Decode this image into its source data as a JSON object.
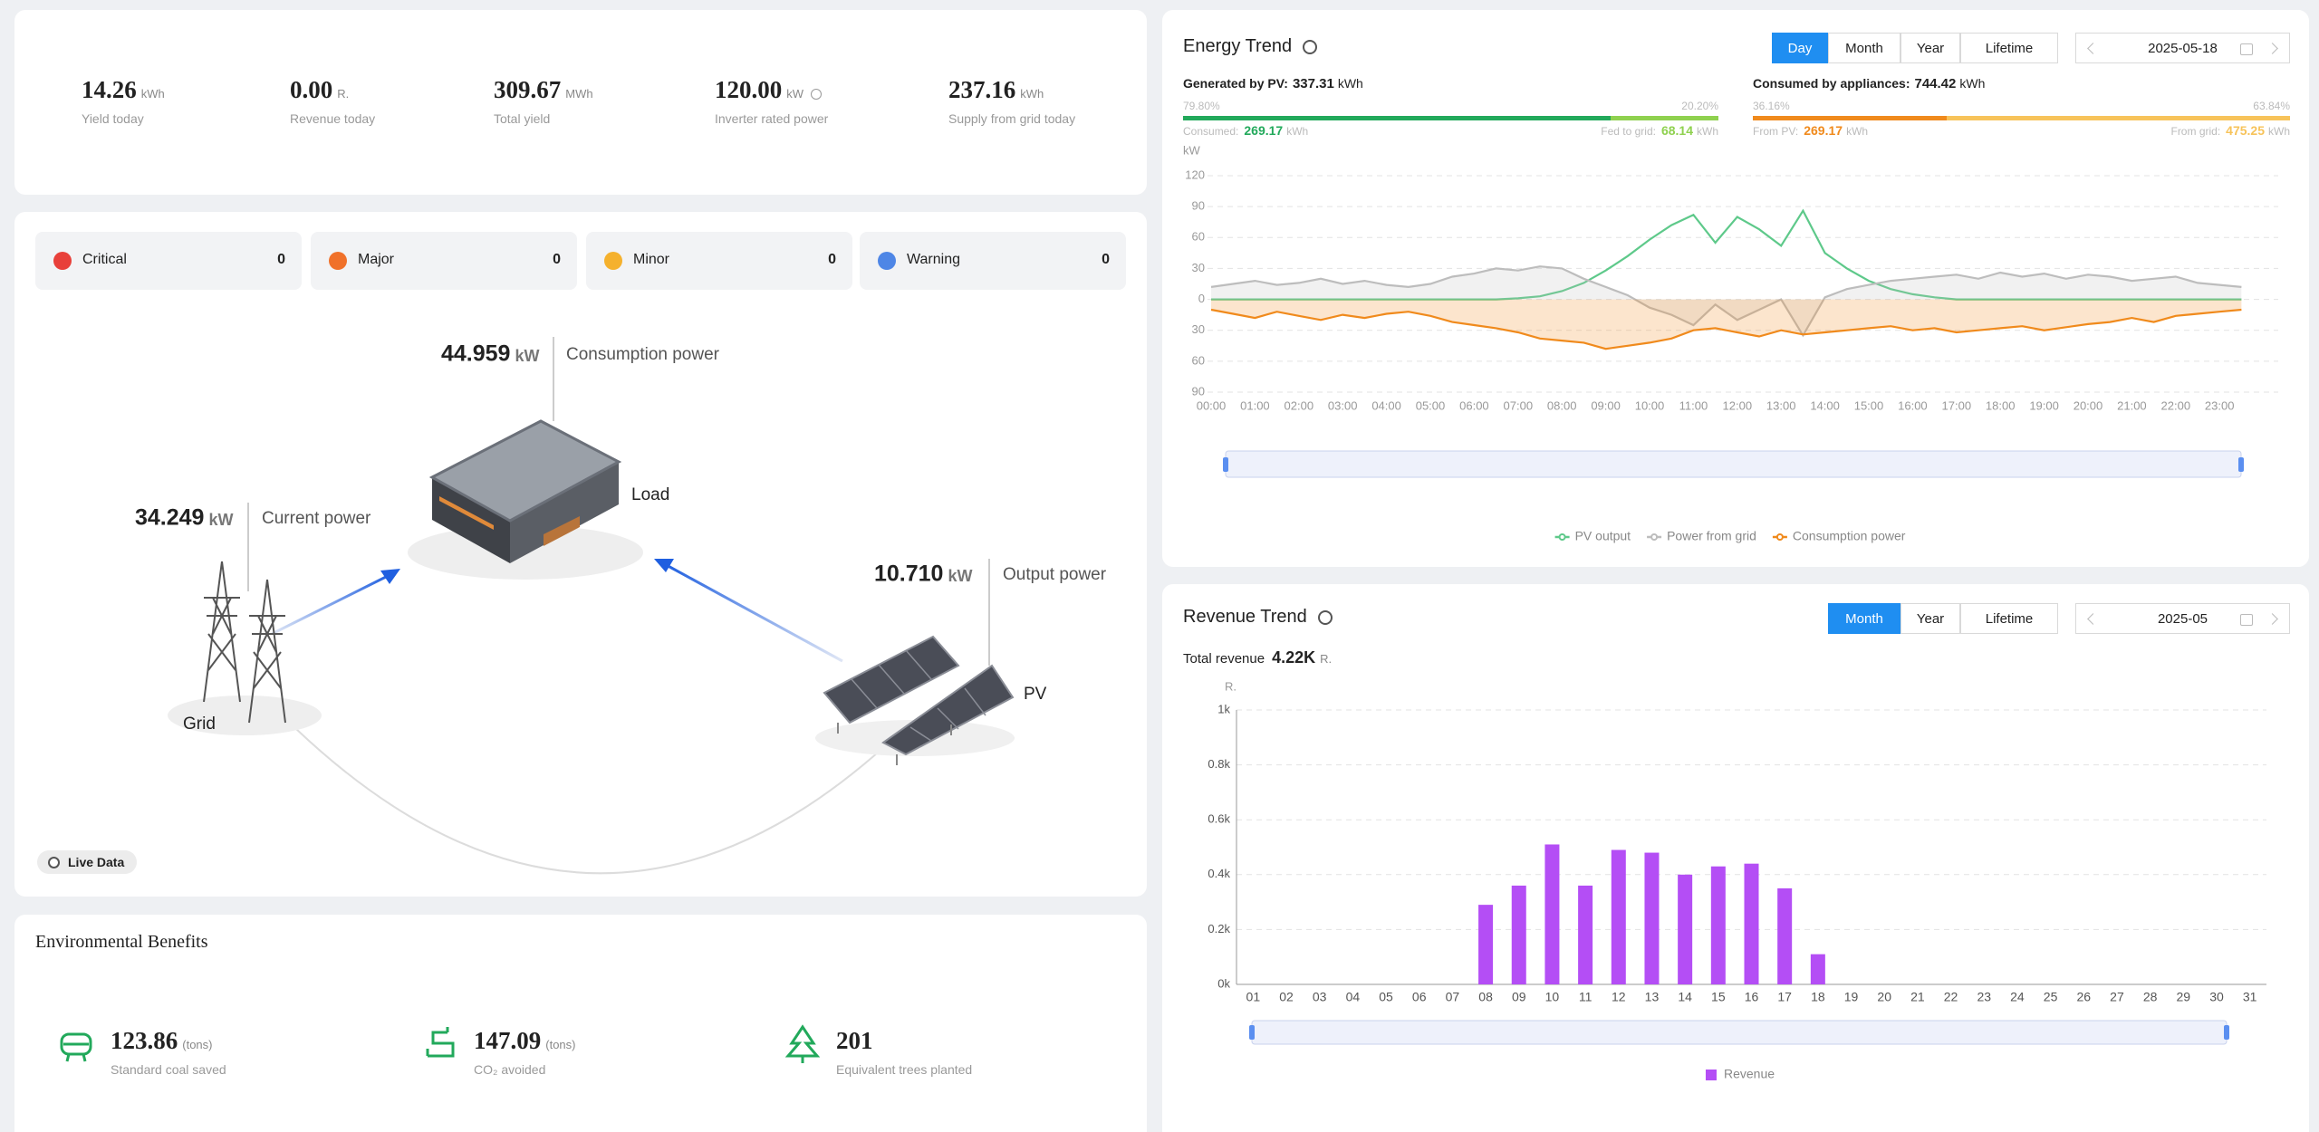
{
  "kpis": [
    {
      "value": "14.26",
      "unit": "kWh",
      "label": "Yield today"
    },
    {
      "value": "0.00",
      "unit": "R.",
      "label": "Revenue today"
    },
    {
      "value": "309.67",
      "unit": "MWh",
      "label": "Total yield"
    },
    {
      "value": "120.00",
      "unit": "kW",
      "label": "Inverter rated power"
    },
    {
      "value": "237.16",
      "unit": "kWh",
      "label": "Supply from grid today"
    }
  ],
  "alarms": [
    {
      "label": "Critical",
      "count": 0,
      "color": "#e8403a"
    },
    {
      "label": "Major",
      "count": 0,
      "color": "#f0712a"
    },
    {
      "label": "Minor",
      "count": 0,
      "color": "#f5b12d"
    },
    {
      "label": "Warning",
      "count": 0,
      "color": "#4e86e6"
    }
  ],
  "flow": {
    "consumption": {
      "value": "44.959",
      "unit": "kW",
      "label": "Consumption power"
    },
    "load_label": "Load",
    "grid": {
      "value": "34.249",
      "unit": "kW",
      "label": "Current power"
    },
    "grid_label": "Grid",
    "pv": {
      "value": "10.710",
      "unit": "kW",
      "label": "Output power"
    },
    "pv_label": "PV",
    "live": "Live Data"
  },
  "environment": {
    "title": "Environmental Benefits",
    "items": [
      {
        "value": "123.86",
        "unit": "(tons)",
        "label": "Standard coal saved"
      },
      {
        "value": "147.09",
        "unit": "(tons)",
        "label": "CO₂ avoided"
      },
      {
        "value": "201",
        "label": "Equivalent trees planted"
      }
    ]
  },
  "energy_controls": {
    "tabs": [
      "Day",
      "Month",
      "Year",
      "Lifetime"
    ],
    "active": 0,
    "date": "2025-05-18"
  },
  "energy_summary": {
    "generated": {
      "label": "Generated by PV:",
      "value": "337.31",
      "unit": "kWh",
      "split": [
        {
          "value": 79.8,
          "label": "79.80%",
          "color": "#22a95b"
        },
        {
          "value": 20.2,
          "label": "20.20%",
          "color": "#8fd14f"
        }
      ],
      "parts": [
        {
          "label": "Consumed:",
          "value": "269.17",
          "unit": "kWh"
        },
        {
          "label": "Fed to grid:",
          "value": "68.14",
          "unit": "kWh"
        }
      ]
    },
    "consumed": {
      "label": "Consumed by appliances:",
      "value": "744.42",
      "unit": "kWh",
      "split": [
        {
          "value": 36.16,
          "label": "36.16%",
          "color": "#f08a1c"
        },
        {
          "value": 63.84,
          "label": "63.84%",
          "color": "#f7c35a"
        }
      ],
      "parts": [
        {
          "label": "From PV:",
          "value": "269.17",
          "unit": "kWh"
        },
        {
          "label": "From grid:",
          "value": "475.25",
          "unit": "kWh"
        }
      ]
    }
  },
  "revenue_controls": {
    "tabs": [
      "Month",
      "Year",
      "Lifetime"
    ],
    "active": 0,
    "date": "2025-05"
  },
  "revenue_total": {
    "label": "Total revenue",
    "value": "4.22K",
    "unit": "R."
  },
  "chart_data": [
    {
      "type": "line",
      "title": "Energy Trend",
      "y_label": "kW",
      "categories": [
        "00:00",
        null,
        "01:00",
        null,
        "02:00",
        null,
        "03:00",
        null,
        "04:00",
        null,
        "05:00",
        null,
        "06:00",
        null,
        "07:00",
        null,
        "08:00",
        null,
        "09:00",
        null,
        "10:00",
        null,
        "11:00",
        null,
        "12:00",
        null,
        "13:00",
        null,
        "14:00",
        null,
        "15:00",
        null,
        "16:00",
        null,
        "17:00",
        null,
        "18:00",
        null,
        "19:00",
        null,
        "20:00",
        null,
        "21:00",
        null,
        "22:00",
        null,
        "23:00",
        null
      ],
      "series": [
        {
          "name": "PV output",
          "color": "#5ec98a",
          "area": false,
          "values": [
            0,
            0,
            0,
            0,
            0,
            0,
            0,
            0,
            0,
            0,
            0,
            0,
            0,
            0,
            1,
            3,
            8,
            16,
            28,
            42,
            58,
            72,
            82,
            55,
            80,
            68,
            52,
            86,
            45,
            30,
            18,
            10,
            5,
            2,
            0,
            0,
            0,
            0,
            0,
            0,
            0,
            0,
            0,
            0,
            0,
            0,
            0,
            0
          ]
        },
        {
          "name": "Power from grid",
          "color": "#bdbdbd",
          "area": true,
          "values": [
            12,
            15,
            18,
            14,
            16,
            20,
            15,
            18,
            14,
            12,
            15,
            22,
            25,
            30,
            28,
            32,
            30,
            20,
            12,
            4,
            -8,
            -15,
            -25,
            -5,
            -20,
            -10,
            0,
            -35,
            2,
            10,
            14,
            18,
            20,
            22,
            24,
            20,
            26,
            22,
            25,
            20,
            24,
            22,
            18,
            20,
            22,
            16,
            14,
            12
          ]
        },
        {
          "name": "Consumption power",
          "color": "#f08a1c",
          "area": true,
          "values": [
            -10,
            -14,
            -18,
            -12,
            -16,
            -20,
            -15,
            -18,
            -14,
            -12,
            -16,
            -22,
            -25,
            -28,
            -32,
            -38,
            -40,
            -42,
            -48,
            -45,
            -42,
            -38,
            -30,
            -28,
            -32,
            -36,
            -30,
            -34,
            -32,
            -30,
            -28,
            -26,
            -30,
            -28,
            -32,
            -30,
            -28,
            -26,
            -30,
            -27,
            -24,
            -22,
            -18,
            -22,
            -16,
            -14,
            -12,
            -10
          ]
        }
      ],
      "ylim": [
        -90,
        120
      ],
      "yticks": [
        {
          "value": -90,
          "label": "90"
        },
        {
          "value": -60,
          "label": "60"
        },
        {
          "value": -30,
          "label": "30"
        },
        0,
        30,
        60,
        90,
        120
      ],
      "grid": true
    },
    {
      "type": "bar",
      "title": "Revenue Trend",
      "y_label": "R.",
      "categories": [
        "01",
        "02",
        "03",
        "04",
        "05",
        "06",
        "07",
        "08",
        "09",
        "10",
        "11",
        "12",
        "13",
        "14",
        "15",
        "16",
        "17",
        "18",
        "19",
        "20",
        "21",
        "22",
        "23",
        "24",
        "25",
        "26",
        "27",
        "28",
        "29",
        "30",
        "31"
      ],
      "series": [
        {
          "name": "Revenue",
          "color": "#b44ef5",
          "values": [
            null,
            null,
            null,
            null,
            null,
            null,
            null,
            290,
            360,
            510,
            360,
            490,
            480,
            400,
            430,
            440,
            350,
            110,
            null,
            null,
            null,
            null,
            null,
            null,
            null,
            null,
            null,
            null,
            null,
            null,
            null
          ]
        }
      ],
      "ylim": [
        0,
        1000
      ],
      "yticks": [
        {
          "value": 0,
          "label": "0k"
        },
        {
          "value": 200,
          "label": "0.2k"
        },
        {
          "value": 400,
          "label": "0.4k"
        },
        {
          "value": 600,
          "label": "0.6k"
        },
        {
          "value": 800,
          "label": "0.8k"
        },
        {
          "value": 1000,
          "label": "1k"
        }
      ],
      "grid": true
    }
  ]
}
